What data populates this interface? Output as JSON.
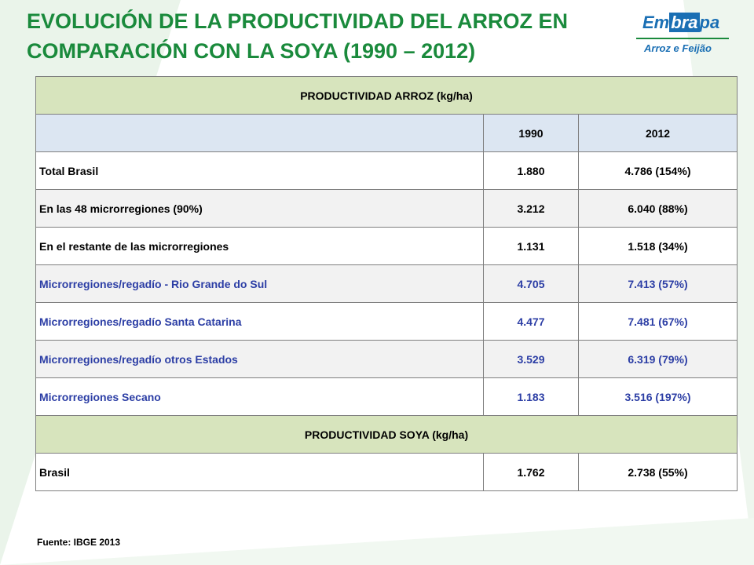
{
  "title": {
    "line1": "EVOLUCIÓN DE LA PRODUCTIVIDAD DEL ARROZ EN",
    "line2": "COMPARACIÓN CON LA SOYA (1990 – 2012)"
  },
  "logo": {
    "brand_prefix": "Em",
    "brand_highlight": "bra",
    "brand_suffix": "pa",
    "subtitle": "Arroz e Feijão"
  },
  "colors": {
    "title": "#1a8a3c",
    "section_header_bg": "#d7e4bd",
    "year_header_bg": "#dce6f2",
    "blue_text": "#2c3ea5"
  },
  "chart_data": {
    "type": "table",
    "sections": [
      {
        "header": "PRODUCTIVIDAD ARROZ (kg/ha)",
        "columns": [
          "",
          "1990",
          "2012"
        ],
        "rows": [
          {
            "label": "Total Brasil",
            "v1990": "1.880",
            "v2012": "4.786 (154%)",
            "color": "black"
          },
          {
            "label": "En las 48 microrregiones (90%)",
            "v1990": "3.212",
            "v2012": "6.040 (88%)",
            "color": "black"
          },
          {
            "label": "En el restante de las microrregiones",
            "v1990": "1.131",
            "v2012": "1.518 (34%)",
            "color": "black"
          },
          {
            "label": "Microrregiones/regadío - Rio Grande do Sul",
            "v1990": "4.705",
            "v2012": "7.413 (57%)",
            "color": "blue"
          },
          {
            "label": "Microrregiones/regadío Santa Catarina",
            "v1990": "4.477",
            "v2012": "7.481 (67%)",
            "color": "blue"
          },
          {
            "label": "Microrregiones/regadío otros Estados",
            "v1990": "3.529",
            "v2012": "6.319 (79%)",
            "color": "blue"
          },
          {
            "label": "Microrregiones Secano",
            "v1990": "1.183",
            "v2012": "3.516 (197%)",
            "color": "blue"
          }
        ]
      },
      {
        "header": "PRODUCTIVIDAD SOYA (kg/ha)",
        "rows": [
          {
            "label": "Brasil",
            "v1990": "1.762",
            "v2012": "2.738 (55%)",
            "color": "black"
          }
        ]
      }
    ]
  },
  "source": "Fuente: IBGE 2013"
}
